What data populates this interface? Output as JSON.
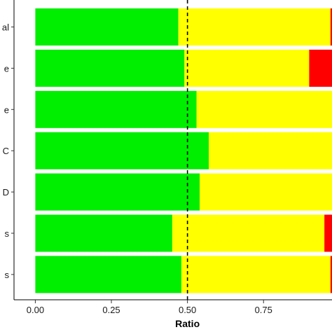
{
  "chart_data": {
    "type": "bar",
    "orientation": "horizontal",
    "stacked": true,
    "categories": [
      "al",
      "e",
      "e",
      "C",
      "D",
      "s",
      "s"
    ],
    "series": [
      {
        "color": "#00ee00",
        "values": [
          0.47,
          0.49,
          0.53,
          0.57,
          0.54,
          0.45,
          0.48
        ]
      },
      {
        "color": "#ffff00",
        "values": [
          0.5,
          0.41,
          0.47,
          0.43,
          0.44,
          0.5,
          0.49
        ]
      },
      {
        "color": "#ff0000",
        "values": [
          0.03,
          0.1,
          0.0,
          0.0,
          0.02,
          0.05,
          0.03
        ]
      }
    ],
    "xlabel": "Ratio",
    "xticks": [
      "0.00",
      "0.25",
      "0.50",
      "0.75"
    ],
    "xlim": [
      -0.07,
      0.975
    ],
    "reference_line": {
      "x": 0.5,
      "style": "dashed"
    },
    "grid": false,
    "legend": "none"
  }
}
